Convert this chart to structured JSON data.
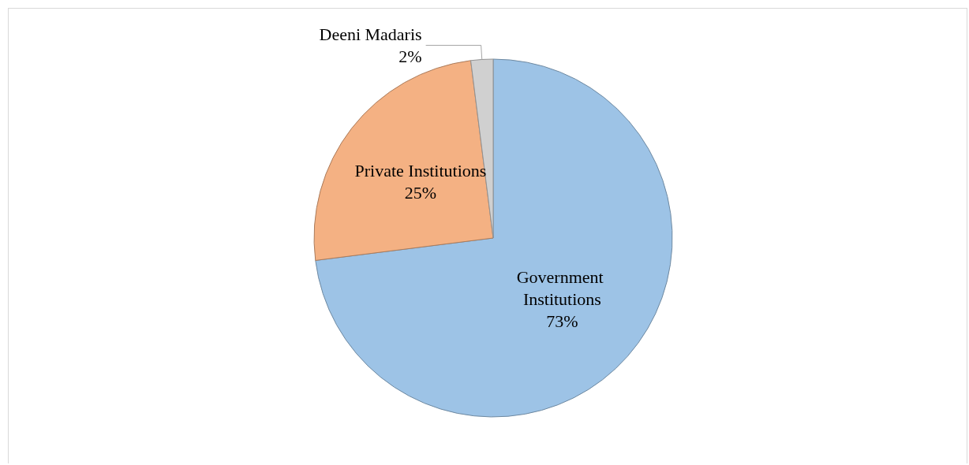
{
  "chart_data": {
    "type": "pie",
    "categories": [
      "Government Institutions",
      "Private Institutions",
      "Deeni Madaris"
    ],
    "values": [
      73,
      25,
      2
    ],
    "colors": [
      "#9dc3e6",
      "#f4b183",
      "#d0d0d0"
    ],
    "value_labels": [
      "73%",
      "25%",
      "2%"
    ],
    "legend": false
  }
}
